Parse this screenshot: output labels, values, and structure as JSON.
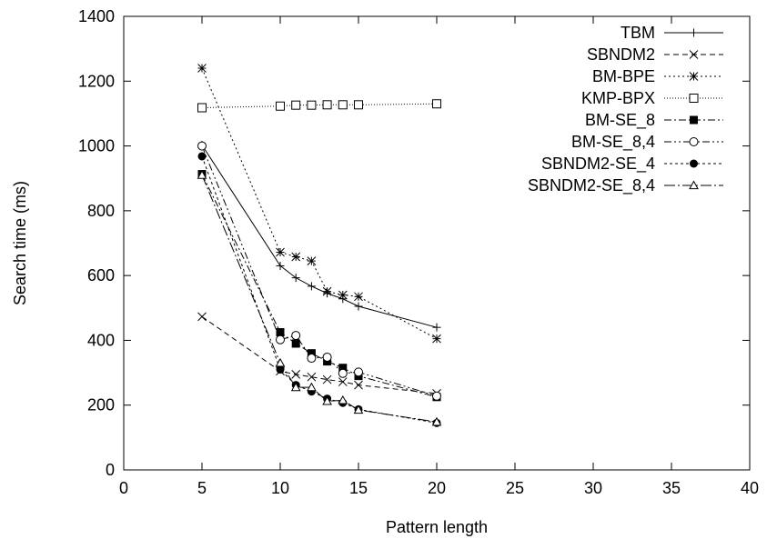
{
  "chart_data": {
    "type": "line",
    "xlabel": "Pattern length",
    "ylabel": "Search time (ms)",
    "xlim": [
      0,
      40
    ],
    "ylim": [
      0,
      1400
    ],
    "xticks": [
      0,
      5,
      10,
      15,
      20,
      25,
      30,
      35,
      40
    ],
    "yticks": [
      0,
      200,
      400,
      600,
      800,
      1000,
      1200,
      1400
    ],
    "grid": false,
    "legend_position": "top-right",
    "series": [
      {
        "name": "TBM",
        "marker": "plus",
        "dash": "solid",
        "x": [
          5,
          10,
          11,
          12,
          13,
          14,
          15,
          20
        ],
        "y": [
          1003,
          630,
          593,
          567,
          545,
          528,
          505,
          440
        ]
      },
      {
        "name": "SBNDM2",
        "marker": "cross",
        "dash": "dashed",
        "x": [
          5,
          10,
          11,
          12,
          13,
          14,
          15,
          20
        ],
        "y": [
          473,
          305,
          295,
          287,
          279,
          272,
          262,
          236
        ]
      },
      {
        "name": "BM-BPE",
        "marker": "star",
        "dash": "dotted",
        "x": [
          5,
          10,
          11,
          12,
          13,
          14,
          15,
          20
        ],
        "y": [
          1240,
          672,
          658,
          645,
          551,
          540,
          535,
          405
        ]
      },
      {
        "name": "KMP-BPX",
        "marker": "open-square",
        "dash": "finedot",
        "x": [
          5,
          10,
          11,
          12,
          13,
          14,
          15,
          20
        ],
        "y": [
          1118,
          1123,
          1126,
          1126,
          1127,
          1127,
          1127,
          1130
        ]
      },
      {
        "name": "BM-SE_8",
        "marker": "filled-square",
        "dash": "dashdot",
        "x": [
          5,
          10,
          11,
          12,
          13,
          14,
          15,
          20
        ],
        "y": [
          913,
          425,
          390,
          360,
          335,
          315,
          290,
          225
        ]
      },
      {
        "name": "BM-SE_8,4",
        "marker": "open-circle",
        "dash": "dashdotdot",
        "x": [
          5,
          10,
          11,
          12,
          13,
          14,
          15,
          20
        ],
        "y": [
          1000,
          402,
          415,
          345,
          348,
          298,
          302,
          228
        ]
      },
      {
        "name": "SBNDM2-SE_4",
        "marker": "filled-circle",
        "dash": "shortdash",
        "x": [
          5,
          10,
          11,
          12,
          13,
          14,
          15,
          20
        ],
        "y": [
          968,
          310,
          262,
          242,
          220,
          207,
          187,
          145
        ]
      },
      {
        "name": "SBNDM2-SE_8,4",
        "marker": "open-triangle",
        "dash": "longdashdot",
        "x": [
          5,
          10,
          11,
          12,
          13,
          14,
          15,
          20
        ],
        "y": [
          910,
          330,
          255,
          255,
          212,
          215,
          185,
          148
        ]
      }
    ]
  }
}
